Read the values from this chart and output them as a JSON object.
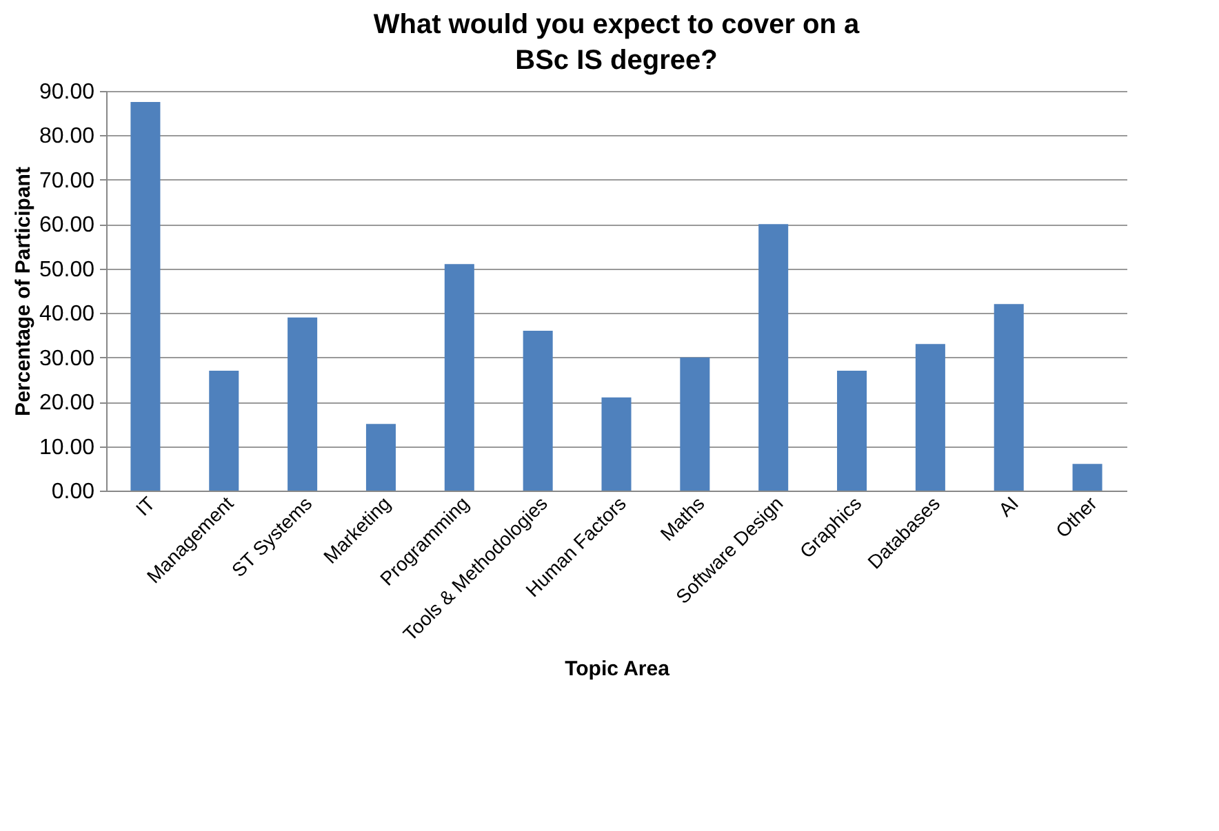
{
  "chart_data": {
    "type": "bar",
    "title": "What would you expect to cover on a BSc IS degree?",
    "xlabel": "Topic Area",
    "ylabel": "Percentage of Participant",
    "categories": [
      "IT",
      "Management",
      "ST Systems",
      "Marketing",
      "Programming",
      "Tools & Methodologies",
      "Human Factors",
      "Maths",
      "Software Design",
      "Graphics",
      "Databases",
      "AI",
      "Other"
    ],
    "values": [
      87.5,
      27,
      39,
      15,
      51,
      36,
      21,
      30,
      60,
      27,
      33,
      42,
      6
    ],
    "color": "#4f81bd",
    "ylim": [
      0,
      90
    ],
    "yticks": [
      {
        "value": 0,
        "label": "0.00"
      },
      {
        "value": 10,
        "label": "10.00"
      },
      {
        "value": 20,
        "label": "20.00"
      },
      {
        "value": 30,
        "label": "30.00"
      },
      {
        "value": 40,
        "label": "40.00"
      },
      {
        "value": 50,
        "label": "50.00"
      },
      {
        "value": 60,
        "label": "60.00"
      },
      {
        "value": 70,
        "label": "70.00"
      },
      {
        "value": 80,
        "label": "80.00"
      },
      {
        "value": 90,
        "label": "90.00"
      }
    ],
    "grid": "y"
  }
}
